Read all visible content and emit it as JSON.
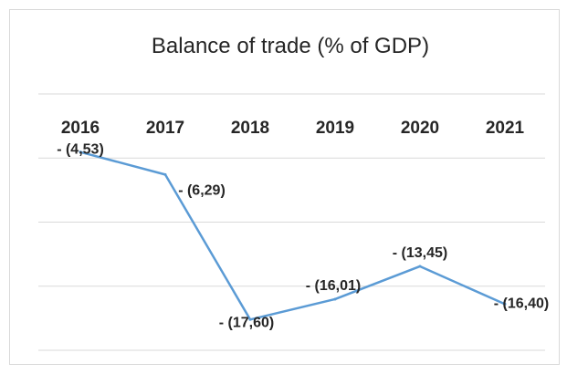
{
  "chart_data": {
    "type": "line",
    "title": "Balance of trade (% of GDP)",
    "categories": [
      "2016",
      "2017",
      "2018",
      "2019",
      "2020",
      "2021"
    ],
    "series": [
      {
        "values": [
          -4.53,
          -6.29,
          -17.6,
          -16.01,
          -13.45,
          -16.4
        ],
        "labels": [
          "- (4,53)",
          "- (6,29)",
          "- (17,60)",
          "- (16,01)",
          "- (13,45)",
          "- (16,40)"
        ],
        "color": "#5b9bd5"
      }
    ],
    "ylim": [
      -20,
      0
    ],
    "grid": true,
    "xaxis_position": "top",
    "legend": "none"
  }
}
